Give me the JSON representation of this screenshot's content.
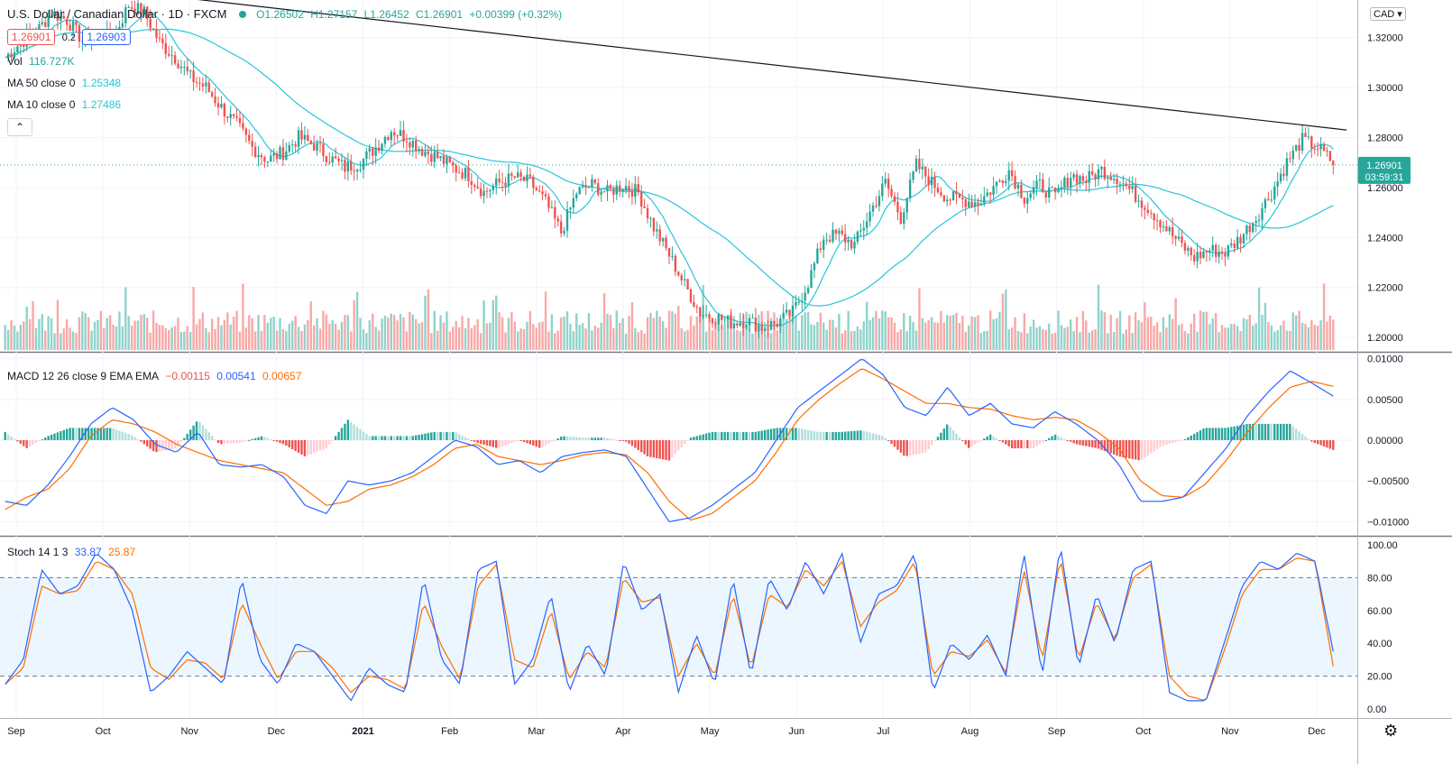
{
  "header": {
    "symbol": "U.S. Dollar / Canadian Dollar · 1D · FXCM",
    "open": "O1.26502",
    "high": "H1.27157",
    "low": "L1.26452",
    "close": "C1.26901",
    "change": "+0.00399 (+0.32%)",
    "bid": "1.26901",
    "spread": "0.2",
    "ask": "1.26903"
  },
  "indicators": {
    "vol_label": "Vol",
    "vol_value": "116.727K",
    "ma50_label": "MA 50 close 0",
    "ma50_value": "1.25348",
    "ma10_label": "MA 10 close 0",
    "ma10_value": "1.27486",
    "macd_label": "MACD 12 26 close 9 EMA EMA",
    "macd_hist": "−0.00115",
    "macd_line": "0.00541",
    "macd_signal": "0.00657",
    "stoch_label": "Stoch 14 1 3",
    "stoch_k": "33.87",
    "stoch_d": "25.87"
  },
  "price_axis": {
    "currency": "CAD",
    "labels": [
      "1.32000",
      "1.30000",
      "1.28000",
      "1.26000",
      "1.24000",
      "1.22000",
      "1.20000"
    ],
    "last_price": "1.26901",
    "countdown": "03:59:31"
  },
  "time_axis": [
    "Sep",
    "Oct",
    "Nov",
    "Dec",
    "2021",
    "Feb",
    "Mar",
    "Apr",
    "May",
    "Jun",
    "Jul",
    "Aug",
    "Sep",
    "Oct",
    "Nov",
    "Dec"
  ],
  "colors": {
    "up": "#26a69a",
    "down": "#ef5350",
    "ma10": "#26c6da",
    "ma50": "#26c6da",
    "macd": "#2962ff",
    "signal": "#ff6d00",
    "band": "#e3f2fd"
  },
  "chart_data": [
    {
      "type": "candlestick",
      "title": "U.S. Dollar / Canadian Dollar · 1D · FXCM",
      "ylim": [
        1.195,
        1.335
      ],
      "x": [
        "Sep",
        "Oct",
        "Nov",
        "Dec",
        "2021",
        "Feb",
        "Mar",
        "Apr",
        "May",
        "Jun",
        "Jul",
        "Aug",
        "Sep",
        "Oct",
        "Nov",
        "Dec"
      ],
      "close_by_week": [
        1.312,
        1.318,
        1.322,
        1.33,
        1.327,
        1.319,
        1.32,
        1.32,
        1.333,
        1.33,
        1.318,
        1.312,
        1.304,
        1.3,
        1.292,
        1.285,
        1.276,
        1.271,
        1.274,
        1.28,
        1.277,
        1.272,
        1.268,
        1.27,
        1.276,
        1.283,
        1.28,
        1.275,
        1.272,
        1.268,
        1.265,
        1.258,
        1.262,
        1.264,
        1.262,
        1.254,
        1.242,
        1.258,
        1.261,
        1.258,
        1.261,
        1.258,
        1.244,
        1.233,
        1.221,
        1.21,
        1.208,
        1.206,
        1.207,
        1.204,
        1.206,
        1.21,
        1.222,
        1.24,
        1.241,
        1.237,
        1.25,
        1.262,
        1.248,
        1.269,
        1.262,
        1.256,
        1.255,
        1.254,
        1.26,
        1.267,
        1.256,
        1.261,
        1.256,
        1.265,
        1.263,
        1.267,
        1.264,
        1.258,
        1.252,
        1.245,
        1.238,
        1.232,
        1.235,
        1.234,
        1.24,
        1.248,
        1.258,
        1.27,
        1.279,
        1.276,
        1.27
      ],
      "trendline": [
        [
          1.336,
          "Sep"
        ],
        [
          1.283,
          "Dec"
        ]
      ],
      "ma10_last": 1.27486,
      "ma50_last": 1.25348,
      "last": 1.26901
    },
    {
      "type": "bar",
      "title": "Vol",
      "last": "116.727K"
    },
    {
      "type": "line",
      "title": "MACD 12 26 close 9 EMA EMA",
      "ylim": [
        -0.0115,
        0.0105
      ],
      "series": [
        {
          "name": "MACD",
          "values": [
            -0.0075,
            -0.008,
            -0.0055,
            -0.002,
            0.002,
            0.004,
            0.0025,
            -0.0005,
            -0.0015,
            0.001,
            -0.003,
            -0.0033,
            -0.003,
            -0.0045,
            -0.008,
            -0.009,
            -0.005,
            -0.0055,
            -0.005,
            -0.004,
            -0.002,
            0.0,
            -0.0008,
            -0.003,
            -0.0025,
            -0.004,
            -0.002,
            -0.0015,
            -0.0012,
            -0.002,
            -0.006,
            -0.01,
            -0.0095,
            -0.008,
            -0.006,
            -0.004,
            0.0,
            0.004,
            0.006,
            0.008,
            0.01,
            0.008,
            0.004,
            0.003,
            0.0065,
            0.003,
            0.0045,
            0.002,
            0.0015,
            0.0035,
            0.002,
            0.0,
            -0.003,
            -0.0075,
            -0.0075,
            -0.007,
            -0.004,
            -0.001,
            0.003,
            0.006,
            0.0085,
            0.007,
            0.0054
          ]
        },
        {
          "name": "Signal",
          "values": [
            -0.0085,
            -0.007,
            -0.006,
            -0.0035,
            0.0005,
            0.0025,
            0.002,
            0.001,
            -0.0005,
            -0.0015,
            -0.0025,
            -0.003,
            -0.0035,
            -0.004,
            -0.006,
            -0.008,
            -0.0075,
            -0.006,
            -0.0055,
            -0.0045,
            -0.003,
            -0.001,
            -0.0005,
            -0.002,
            -0.0025,
            -0.003,
            -0.0025,
            -0.0018,
            -0.0015,
            -0.0018,
            -0.004,
            -0.0075,
            -0.0098,
            -0.009,
            -0.007,
            -0.005,
            -0.0015,
            0.0025,
            0.005,
            0.007,
            0.0088,
            0.0075,
            0.006,
            0.0045,
            0.0045,
            0.004,
            0.0038,
            0.003,
            0.0025,
            0.0028,
            0.0025,
            0.001,
            -0.001,
            -0.005,
            -0.0068,
            -0.007,
            -0.0055,
            -0.0025,
            0.001,
            0.004,
            0.0065,
            0.0072,
            0.0066
          ]
        }
      ],
      "hist_last": -0.00115
    },
    {
      "type": "line",
      "title": "Stoch 14 1 3",
      "ylim": [
        0,
        100
      ],
      "bands": [
        20,
        80
      ],
      "series": [
        {
          "name": "%K",
          "values": [
            15,
            30,
            85,
            70,
            75,
            95,
            85,
            60,
            10,
            20,
            35,
            25,
            15,
            80,
            30,
            15,
            40,
            35,
            20,
            5,
            25,
            15,
            10,
            80,
            30,
            15,
            85,
            90,
            15,
            30,
            70,
            10,
            40,
            20,
            90,
            60,
            70,
            10,
            45,
            15,
            80,
            20,
            80,
            60,
            90,
            70,
            95,
            40,
            70,
            75,
            95,
            10,
            40,
            30,
            45,
            20,
            95,
            20,
            100,
            25,
            70,
            40,
            85,
            90,
            10,
            5,
            5,
            40,
            75,
            90,
            85,
            95,
            90,
            35
          ]
        },
        {
          "name": "%D",
          "values": [
            15,
            25,
            75,
            70,
            72,
            90,
            85,
            70,
            25,
            18,
            30,
            28,
            18,
            65,
            40,
            18,
            35,
            35,
            25,
            10,
            20,
            18,
            12,
            65,
            38,
            18,
            75,
            88,
            30,
            25,
            60,
            18,
            35,
            25,
            80,
            65,
            68,
            20,
            40,
            20,
            70,
            25,
            70,
            62,
            85,
            75,
            90,
            50,
            65,
            72,
            90,
            20,
            35,
            32,
            42,
            22,
            85,
            30,
            92,
            30,
            65,
            42,
            80,
            88,
            20,
            8,
            5,
            35,
            70,
            85,
            85,
            92,
            90,
            26
          ]
        }
      ],
      "k_last": 33.87,
      "d_last": 25.87
    }
  ]
}
